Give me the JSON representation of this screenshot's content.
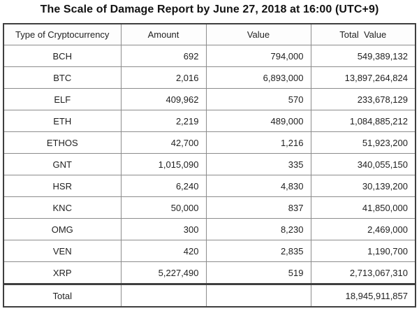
{
  "title": "The Scale of Damage Report by June 27, 2018 at 16:00 (UTC+9)",
  "colors": {
    "background": "#ffffff",
    "text": "#1f1f1f",
    "border_outer": "#3f3f3f",
    "border_inner": "#8c8c8c"
  },
  "chart_data": {
    "type": "table",
    "title": "The Scale of Damage Report by June 27, 2018 at 16:00 (UTC+9)",
    "columns": [
      "Type of Cryptocurrency",
      "Amount",
      "Value",
      "Total  Value"
    ],
    "rows": [
      {
        "type": "BCH",
        "amount": "692",
        "value": "794,000",
        "total": "549,389,132"
      },
      {
        "type": "BTC",
        "amount": "2,016",
        "value": "6,893,000",
        "total": "13,897,264,824"
      },
      {
        "type": "ELF",
        "amount": "409,962",
        "value": "570",
        "total": "233,678,129"
      },
      {
        "type": "ETH",
        "amount": "2,219",
        "value": "489,000",
        "total": "1,084,885,212"
      },
      {
        "type": "ETHOS",
        "amount": "42,700",
        "value": "1,216",
        "total": "51,923,200"
      },
      {
        "type": "GNT",
        "amount": "1,015,090",
        "value": "335",
        "total": "340,055,150"
      },
      {
        "type": "HSR",
        "amount": "6,240",
        "value": "4,830",
        "total": "30,139,200"
      },
      {
        "type": "KNC",
        "amount": "50,000",
        "value": "837",
        "total": "41,850,000"
      },
      {
        "type": "OMG",
        "amount": "300",
        "value": "8,230",
        "total": "2,469,000"
      },
      {
        "type": "VEN",
        "amount": "420",
        "value": "2,835",
        "total": "1,190,700"
      },
      {
        "type": "XRP",
        "amount": "5,227,490",
        "value": "519",
        "total": "2,713,067,310"
      }
    ],
    "total_row": {
      "label": "Total",
      "amount": "",
      "value": "",
      "total": "18,945,911,857"
    }
  }
}
